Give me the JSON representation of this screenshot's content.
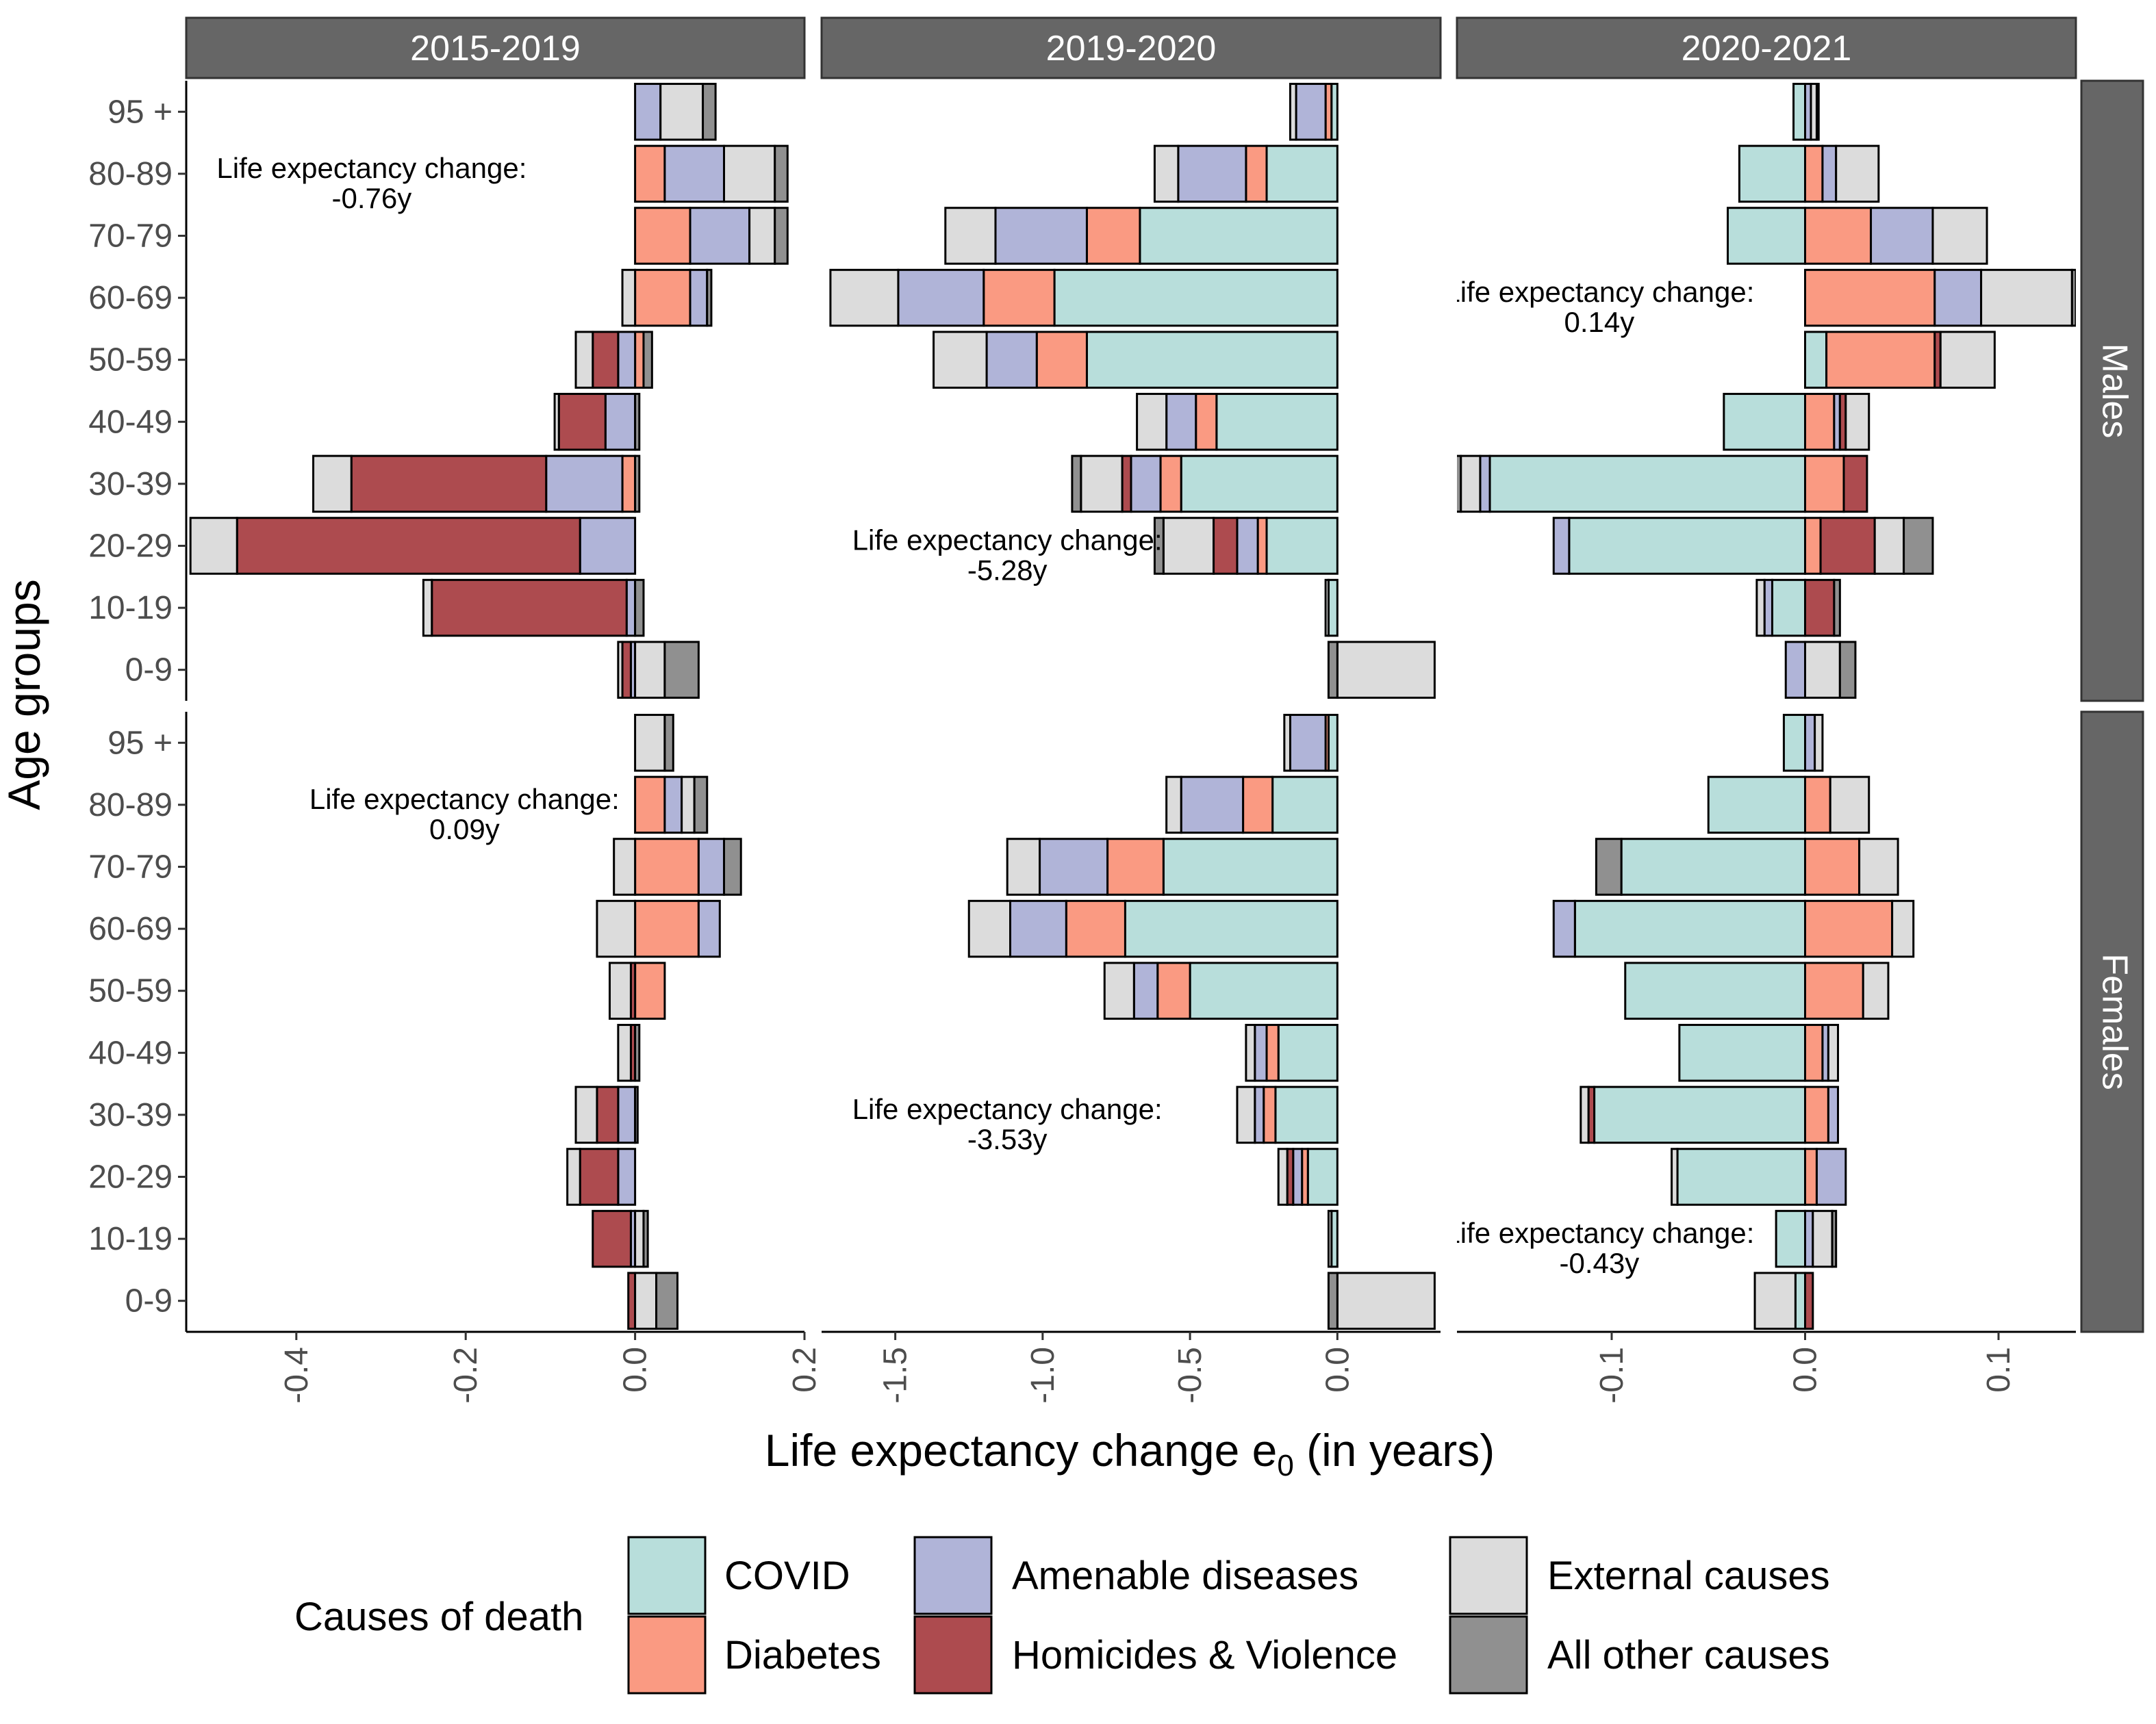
{
  "chart_data": {
    "type": "bar",
    "orientation": "horizontal-stacked-diverging",
    "xlabel": "Life expectancy change e",
    "xlabel_subscript": "0",
    "xlabel_suffix": " (in years)",
    "ylabel": "Age groups",
    "age_groups": [
      "0-9",
      "10-19",
      "20-29",
      "30-39",
      "40-49",
      "50-59",
      "60-69",
      "70-79",
      "80-89",
      "95 +"
    ],
    "causes": [
      "COVID",
      "Diabetes",
      "Amenable diseases",
      "Homicides & Violence",
      "External causes",
      "All other causes"
    ],
    "legend_title": "Causes of death",
    "legend_placement": "bottom",
    "colors": {
      "COVID": "#b8dedb",
      "Diabetes": "#fa9a82",
      "Amenable diseases": "#b0b4d8",
      "Homicides & Violence": "#ad4b4f",
      "External causes": "#dcdcdc",
      "All other causes": "#909090",
      "strip": "#666666"
    },
    "period_labels": [
      "2015-2019",
      "2019-2020",
      "2020-2021"
    ],
    "sex_labels": [
      "Males",
      "Females"
    ],
    "x_axes": [
      {
        "period": "2015-2019",
        "xlim": [
          -0.53,
          0.2
        ],
        "ticks": [
          -0.4,
          -0.2,
          0.0,
          0.2
        ],
        "tick_labels": [
          "-0.4",
          "-0.2",
          "0.0",
          "0.2"
        ]
      },
      {
        "period": "2019-2020",
        "xlim": [
          -1.75,
          0.35
        ],
        "ticks": [
          -1.5,
          -1.0,
          -0.5,
          0.0
        ],
        "tick_labels": [
          "-1.5",
          "-1.0",
          "-0.5",
          "0.0"
        ]
      },
      {
        "period": "2020-2021",
        "xlim": [
          -0.18,
          0.14
        ],
        "ticks": [
          -0.1,
          0.0,
          0.1
        ],
        "tick_labels": [
          "-0.1",
          "0.0",
          "0.1"
        ]
      }
    ],
    "panels": [
      {
        "period": "2015-2019",
        "sex": "Males",
        "annotation": [
          "Life expectancy change:",
          "-0.76y"
        ],
        "bars": [
          {
            "age": "0-9",
            "COVID": 0,
            "Diabetes": 0,
            "Amenable diseases": -0.005,
            "Homicides & Violence": -0.01,
            "External causes": -0.005,
            "All other causes": 0.04,
            "External causes_pos": 0.035
          },
          {
            "age": "10-19",
            "COVID": 0,
            "Diabetes": 0,
            "Amenable diseases": -0.01,
            "Homicides & Violence": -0.23,
            "External causes": -0.01,
            "All other causes": 0.01
          },
          {
            "age": "20-29",
            "COVID": 0,
            "Diabetes": 0,
            "Amenable diseases": -0.065,
            "Homicides & Violence": -0.405,
            "External causes": -0.055,
            "All other causes": 0
          },
          {
            "age": "30-39",
            "COVID": 0,
            "Diabetes": -0.015,
            "Amenable diseases": -0.09,
            "Homicides & Violence": -0.23,
            "External causes": -0.045,
            "All other causes": 0.005
          },
          {
            "age": "40-49",
            "COVID": 0,
            "Diabetes": 0,
            "Amenable diseases": -0.035,
            "Homicides & Violence": -0.055,
            "External causes": -0.005,
            "All other causes": 0.005
          },
          {
            "age": "50-59",
            "COVID": 0,
            "Diabetes": 0.01,
            "Amenable diseases": -0.02,
            "Homicides & Violence": -0.03,
            "External causes": -0.02,
            "All other causes": 0.01
          },
          {
            "age": "60-69",
            "COVID": 0,
            "Diabetes": 0.065,
            "Amenable diseases": 0.02,
            "Homicides & Violence": 0,
            "External causes": -0.015,
            "All other causes": 0.005
          },
          {
            "age": "70-79",
            "COVID": 0,
            "Diabetes": 0.065,
            "Amenable diseases": 0.07,
            "Homicides & Violence": 0,
            "External causes": 0.03,
            "All other causes": 0.015
          },
          {
            "age": "80-89",
            "COVID": 0,
            "Diabetes": 0.035,
            "Amenable diseases": 0.07,
            "Homicides & Violence": 0,
            "External causes": 0.06,
            "All other causes": 0.015
          },
          {
            "age": "95 +",
            "COVID": 0,
            "Diabetes": 0,
            "Amenable diseases": 0.03,
            "Homicides & Violence": 0,
            "External causes": 0.05,
            "All other causes": 0.015
          }
        ]
      },
      {
        "period": "2019-2020",
        "sex": "Males",
        "annotation": [
          "Life expectancy change:",
          "-5.28y"
        ],
        "bars": [
          {
            "age": "0-9",
            "COVID": 0,
            "Diabetes": 0,
            "Amenable diseases": 0,
            "Homicides & Violence": 0,
            "External causes": 0.33,
            "All other causes": -0.03
          },
          {
            "age": "10-19",
            "COVID": -0.03,
            "Diabetes": 0,
            "Amenable diseases": 0,
            "Homicides & Violence": 0,
            "External causes": -0.01,
            "All other causes": 0
          },
          {
            "age": "20-29",
            "COVID": -0.24,
            "Diabetes": -0.03,
            "Amenable diseases": -0.07,
            "Homicides & Violence": -0.08,
            "External causes": -0.17,
            "All other causes": -0.03
          },
          {
            "age": "30-39",
            "COVID": -0.53,
            "Diabetes": -0.07,
            "Amenable diseases": -0.1,
            "Homicides & Violence": -0.03,
            "External causes": -0.14,
            "All other causes": -0.03
          },
          {
            "age": "40-49",
            "COVID": -0.41,
            "Diabetes": -0.07,
            "Amenable diseases": -0.1,
            "Homicides & Violence": 0,
            "External causes": -0.1,
            "All other causes": 0
          },
          {
            "age": "50-59",
            "COVID": -0.85,
            "Diabetes": -0.17,
            "Amenable diseases": -0.17,
            "Homicides & Violence": 0,
            "External causes": -0.18,
            "All other causes": 0
          },
          {
            "age": "60-69",
            "COVID": -0.96,
            "Diabetes": -0.24,
            "Amenable diseases": -0.29,
            "Homicides & Violence": 0,
            "External causes": -0.23,
            "All other causes": 0
          },
          {
            "age": "70-79",
            "COVID": -0.67,
            "Diabetes": -0.18,
            "Amenable diseases": -0.31,
            "Homicides & Violence": 0,
            "External causes": -0.17,
            "All other causes": 0
          },
          {
            "age": "80-89",
            "COVID": -0.24,
            "Diabetes": -0.07,
            "Amenable diseases": -0.23,
            "Homicides & Violence": 0,
            "External causes": -0.08,
            "All other causes": 0
          },
          {
            "age": "95 +",
            "COVID": -0.02,
            "Diabetes": -0.02,
            "Amenable diseases": -0.1,
            "Homicides & Violence": 0,
            "External causes": -0.02,
            "All other causes": 0
          }
        ]
      },
      {
        "period": "2020-2021",
        "sex": "Males",
        "annotation": [
          "Life expectancy change:",
          "0.14y"
        ],
        "bars": [
          {
            "age": "0-9",
            "COVID": 0,
            "Diabetes": 0,
            "Amenable diseases": -0.01,
            "Homicides & Violence": 0,
            "External causes": 0.018,
            "All other causes": 0.008
          },
          {
            "age": "10-19",
            "COVID": -0.017,
            "Diabetes": 0,
            "Amenable diseases": -0.004,
            "Homicides & Violence": 0.015,
            "External causes": -0.004,
            "All other causes": 0.003
          },
          {
            "age": "20-29",
            "COVID": -0.122,
            "Diabetes": 0.008,
            "Amenable diseases": -0.008,
            "Homicides & Violence": 0.028,
            "External causes": 0.015,
            "All other causes": 0.015
          },
          {
            "age": "30-39",
            "COVID": -0.163,
            "Diabetes": 0.02,
            "Amenable diseases": -0.005,
            "Homicides & Violence": 0.012,
            "External causes": -0.01,
            "All other causes": -0.005
          },
          {
            "age": "40-49",
            "COVID": -0.042,
            "Diabetes": 0.015,
            "Amenable diseases": 0.003,
            "Homicides & Violence": 0.003,
            "External causes": 0.012,
            "All other causes": 0
          },
          {
            "age": "50-59",
            "COVID": 0.011,
            "Diabetes": 0.056,
            "Amenable diseases": 0,
            "Homicides & Violence": 0.003,
            "External causes": 0.028,
            "All other causes": 0
          },
          {
            "age": "60-69",
            "COVID": 0,
            "Diabetes": 0.067,
            "Amenable diseases": 0.024,
            "Homicides & Violence": 0,
            "External causes": 0.047,
            "All other causes": 0.002
          },
          {
            "age": "70-79",
            "COVID": -0.04,
            "Diabetes": 0.034,
            "Amenable diseases": 0.032,
            "Homicides & Violence": 0,
            "External causes": 0.028,
            "All other causes": 0
          },
          {
            "age": "80-89",
            "COVID": -0.034,
            "Diabetes": 0.009,
            "Amenable diseases": 0.007,
            "Homicides & Violence": 0,
            "External causes": 0.022,
            "All other causes": 0
          },
          {
            "age": "95 +",
            "COVID": -0.006,
            "Diabetes": 0,
            "Amenable diseases": 0.003,
            "Homicides & Violence": 0,
            "External causes": 0.003,
            "All other causes": 0.001
          }
        ]
      },
      {
        "period": "2015-2019",
        "sex": "Females",
        "annotation": [
          "Life expectancy change:",
          "0.09y"
        ],
        "bars": [
          {
            "age": "0-9",
            "COVID": 0,
            "Diabetes": 0,
            "Amenable diseases": 0,
            "Homicides & Violence": -0.008,
            "External causes": 0.025,
            "All other causes": 0.025
          },
          {
            "age": "10-19",
            "COVID": 0,
            "Diabetes": 0,
            "Amenable diseases": -0.005,
            "Homicides & Violence": -0.045,
            "External causes": 0.01,
            "All other causes": 0.005
          },
          {
            "age": "20-29",
            "COVID": 0,
            "Diabetes": 0,
            "Amenable diseases": -0.02,
            "Homicides & Violence": -0.045,
            "External causes": -0.015,
            "All other causes": 0
          },
          {
            "age": "30-39",
            "COVID": 0,
            "Diabetes": 0,
            "Amenable diseases": -0.02,
            "Homicides & Violence": -0.025,
            "External causes": -0.025,
            "All other causes": 0.003
          },
          {
            "age": "40-49",
            "COVID": 0,
            "Diabetes": 0,
            "Amenable diseases": 0,
            "Homicides & Violence": -0.005,
            "External causes": -0.015,
            "All other causes": 0.005
          },
          {
            "age": "50-59",
            "COVID": 0,
            "Diabetes": 0.035,
            "Amenable diseases": 0,
            "Homicides & Violence": -0.005,
            "External causes": -0.025,
            "All other causes": 0
          },
          {
            "age": "60-69",
            "COVID": 0,
            "Diabetes": 0.075,
            "Amenable diseases": 0.025,
            "Homicides & Violence": 0,
            "External causes": -0.045,
            "All other causes": 0
          },
          {
            "age": "70-79",
            "COVID": 0,
            "Diabetes": 0.075,
            "Amenable diseases": 0.03,
            "Homicides & Violence": 0,
            "External causes": -0.025,
            "All other causes": 0.02
          },
          {
            "age": "80-89",
            "COVID": 0,
            "Diabetes": 0.035,
            "Amenable diseases": 0.02,
            "Homicides & Violence": 0,
            "External causes": 0.015,
            "All other causes": 0.015
          },
          {
            "age": "95 +",
            "COVID": 0,
            "Diabetes": 0,
            "Amenable diseases": 0,
            "Homicides & Violence": 0,
            "External causes": 0.035,
            "All other causes": 0.01
          }
        ]
      },
      {
        "period": "2019-2020",
        "sex": "Females",
        "annotation": [
          "Life expectancy change:",
          "-3.53y"
        ],
        "bars": [
          {
            "age": "0-9",
            "COVID": 0,
            "Diabetes": 0,
            "Amenable diseases": 0,
            "Homicides & Violence": 0,
            "External causes": 0.33,
            "All other causes": -0.03
          },
          {
            "age": "10-19",
            "COVID": -0.02,
            "Diabetes": 0,
            "Amenable diseases": 0,
            "Homicides & Violence": 0,
            "External causes": -0.01,
            "All other causes": 0
          },
          {
            "age": "20-29",
            "COVID": -0.1,
            "Diabetes": -0.02,
            "Amenable diseases": -0.03,
            "Homicides & Violence": -0.02,
            "External causes": -0.03,
            "All other causes": 0
          },
          {
            "age": "30-39",
            "COVID": -0.21,
            "Diabetes": -0.04,
            "Amenable diseases": -0.03,
            "Homicides & Violence": 0,
            "External causes": -0.06,
            "All other causes": 0
          },
          {
            "age": "40-49",
            "COVID": -0.2,
            "Diabetes": -0.04,
            "Amenable diseases": -0.04,
            "Homicides & Violence": 0,
            "External causes": -0.03,
            "All other causes": 0
          },
          {
            "age": "50-59",
            "COVID": -0.5,
            "Diabetes": -0.11,
            "Amenable diseases": -0.08,
            "Homicides & Violence": 0,
            "External causes": -0.1,
            "All other causes": 0
          },
          {
            "age": "60-69",
            "COVID": -0.72,
            "Diabetes": -0.2,
            "Amenable diseases": -0.19,
            "Homicides & Violence": 0,
            "External causes": -0.14,
            "All other causes": 0
          },
          {
            "age": "70-79",
            "COVID": -0.59,
            "Diabetes": -0.19,
            "Amenable diseases": -0.23,
            "Homicides & Violence": 0,
            "External causes": -0.11,
            "All other causes": 0
          },
          {
            "age": "80-89",
            "COVID": -0.22,
            "Diabetes": -0.1,
            "Amenable diseases": -0.21,
            "Homicides & Violence": 0,
            "External causes": -0.05,
            "All other causes": 0
          },
          {
            "age": "95 +",
            "COVID": -0.03,
            "Diabetes": -0.01,
            "Amenable diseases": -0.12,
            "Homicides & Violence": 0,
            "External causes": -0.02,
            "All other causes": 0
          }
        ]
      },
      {
        "period": "2020-2021",
        "sex": "Females",
        "annotation": [
          "Life expectancy change:",
          "-0.43y"
        ],
        "bars": [
          {
            "age": "0-9",
            "COVID": -0.005,
            "Diabetes": 0,
            "Amenable diseases": 0,
            "Homicides & Violence": 0.004,
            "External causes": -0.021,
            "All other causes": 0
          },
          {
            "age": "10-19",
            "COVID": -0.015,
            "Diabetes": 0,
            "Amenable diseases": 0.004,
            "Homicides & Violence": 0,
            "External causes": 0.01,
            "All other causes": 0.002
          },
          {
            "age": "20-29",
            "COVID": -0.066,
            "Diabetes": 0.006,
            "Amenable diseases": 0.015,
            "Homicides & Violence": 0,
            "External causes": -0.003,
            "All other causes": 0
          },
          {
            "age": "30-39",
            "COVID": -0.109,
            "Diabetes": 0.012,
            "Amenable diseases": 0.005,
            "Homicides & Violence": -0.003,
            "External causes": -0.004,
            "All other causes": 0
          },
          {
            "age": "40-49",
            "COVID": -0.065,
            "Diabetes": 0.009,
            "Amenable diseases": 0.003,
            "Homicides & Violence": 0,
            "External causes": 0.005,
            "All other causes": 0
          },
          {
            "age": "50-59",
            "COVID": -0.093,
            "Diabetes": 0.03,
            "Amenable diseases": 0,
            "Homicides & Violence": 0,
            "External causes": 0.013,
            "All other causes": 0
          },
          {
            "age": "60-69",
            "COVID": -0.119,
            "Diabetes": 0.045,
            "Amenable diseases": -0.011,
            "Homicides & Violence": 0,
            "External causes": 0.011,
            "All other causes": 0
          },
          {
            "age": "70-79",
            "COVID": -0.095,
            "Diabetes": 0.028,
            "Amenable diseases": 0,
            "Homicides & Violence": 0,
            "External causes": 0.02,
            "All other causes": -0.013
          },
          {
            "age": "80-89",
            "COVID": -0.05,
            "Diabetes": 0.013,
            "Amenable diseases": 0,
            "Homicides & Violence": 0,
            "External causes": 0.02,
            "All other causes": 0
          },
          {
            "age": "95 +",
            "COVID": -0.011,
            "Diabetes": 0,
            "Amenable diseases": 0.005,
            "Homicides & Violence": 0,
            "External causes": 0.004,
            "All other causes": 0
          }
        ]
      }
    ]
  }
}
